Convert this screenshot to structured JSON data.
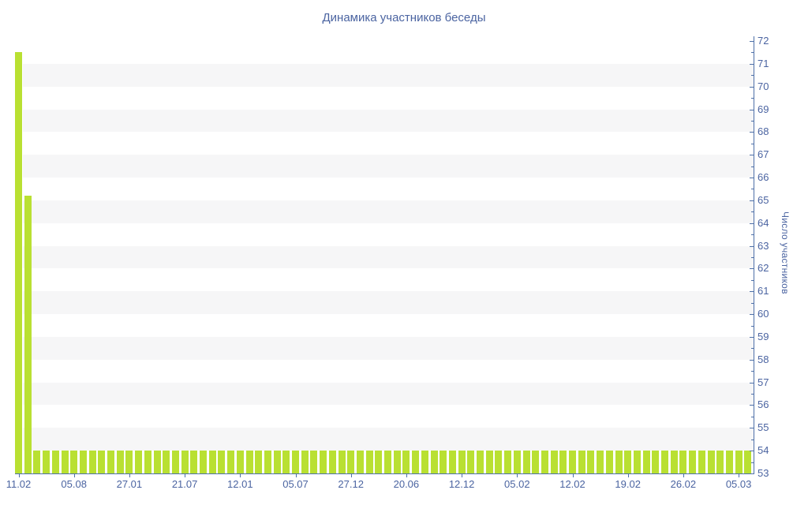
{
  "chart_data": {
    "type": "bar",
    "title": "Динамика участников беседы",
    "xlabel": "",
    "ylabel": "Число участников",
    "ylim": [
      53,
      72
    ],
    "ytick_step": 1,
    "ytick_minor_step": 0.5,
    "grid": "alternating horizontal bands, one unit tall, between odd and next lower even values",
    "legend": "none",
    "bar_count": 80,
    "x_tick_step": 6,
    "x_tick_labels": [
      "11.02",
      "05.08",
      "27.01",
      "21.07",
      "12.01",
      "05.07",
      "27.12",
      "20.06",
      "12.12",
      "05.02",
      "12.02",
      "19.02",
      "26.02",
      "05.03"
    ],
    "values": [
      71.5,
      65.2,
      54,
      54,
      54,
      54,
      54,
      54,
      54,
      54,
      54,
      54,
      54,
      54,
      54,
      54,
      54,
      54,
      54,
      54,
      54,
      54,
      54,
      54,
      54,
      54,
      54,
      54,
      54,
      54,
      54,
      54,
      54,
      54,
      54,
      54,
      54,
      54,
      54,
      54,
      54,
      54,
      54,
      54,
      54,
      54,
      54,
      54,
      54,
      54,
      54,
      54,
      54,
      54,
      54,
      54,
      54,
      54,
      54,
      54,
      54,
      54,
      54,
      54,
      54,
      54,
      54,
      54,
      54,
      54,
      54,
      54,
      54,
      54,
      54,
      54,
      54,
      54,
      54,
      54
    ],
    "colors": {
      "bar": "#b9e032",
      "axis": "#4e70a8",
      "text": "#4b64a1",
      "band": "#f6f6f7",
      "background": "#ffffff"
    }
  }
}
